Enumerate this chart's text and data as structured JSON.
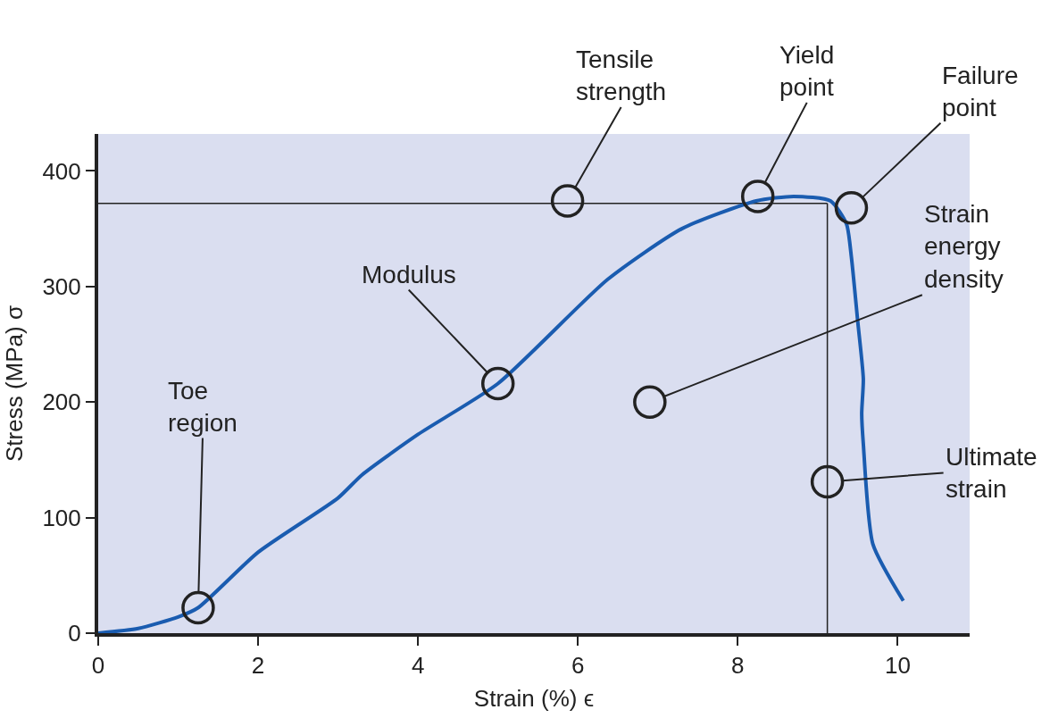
{
  "chart_data": {
    "type": "line",
    "xlabel": "Strain (%) ϵ",
    "ylabel": "Stress (MPa) σ",
    "xlim": [
      0,
      10.9
    ],
    "ylim": [
      0,
      432
    ],
    "xticks": [
      0,
      2,
      4,
      6,
      8,
      10
    ],
    "yticks": [
      0,
      100,
      200,
      300,
      400
    ],
    "grid": false,
    "legend": false,
    "marker": "none",
    "line_style": "solid",
    "series": [
      {
        "color": "#1a5cb0",
        "x": [
          0,
          0.5,
          1,
          1.25,
          2,
          3,
          3.3,
          4,
          5,
          6.37,
          7.3,
          8.23,
          8.7,
          9.16,
          9.36,
          9.42,
          9.5,
          9.57,
          9.55,
          9.57,
          9.69,
          10.07
        ],
        "values": [
          0,
          4,
          14,
          22,
          70,
          117,
          137,
          172,
          216,
          306,
          350,
          374,
          378,
          374,
          354,
          326,
          270,
          220,
          190,
          164,
          77,
          28
        ]
      }
    ],
    "ref_lines": [
      {
        "axis": "y",
        "value": 372,
        "color": "#222222"
      },
      {
        "axis": "x",
        "value": 9.12,
        "color": "#222222"
      }
    ],
    "annotations": [
      {
        "text": "Toe\nregion",
        "x": 1.25,
        "y": 22
      },
      {
        "text": "Modulus",
        "x": 5.0,
        "y": 216
      },
      {
        "text": "Tensile\nstrength",
        "x": 5.87,
        "y": 374
      },
      {
        "text": "Yield\npoint",
        "x": 8.25,
        "y": 378
      },
      {
        "text": "Failure\npoint",
        "x": 9.42,
        "y": 368
      },
      {
        "text": "Strain\nenergy\ndensity",
        "x": 6.9,
        "y": 200
      },
      {
        "text": "Ultimate\nstrain",
        "x": 9.12,
        "y": 131
      }
    ]
  }
}
